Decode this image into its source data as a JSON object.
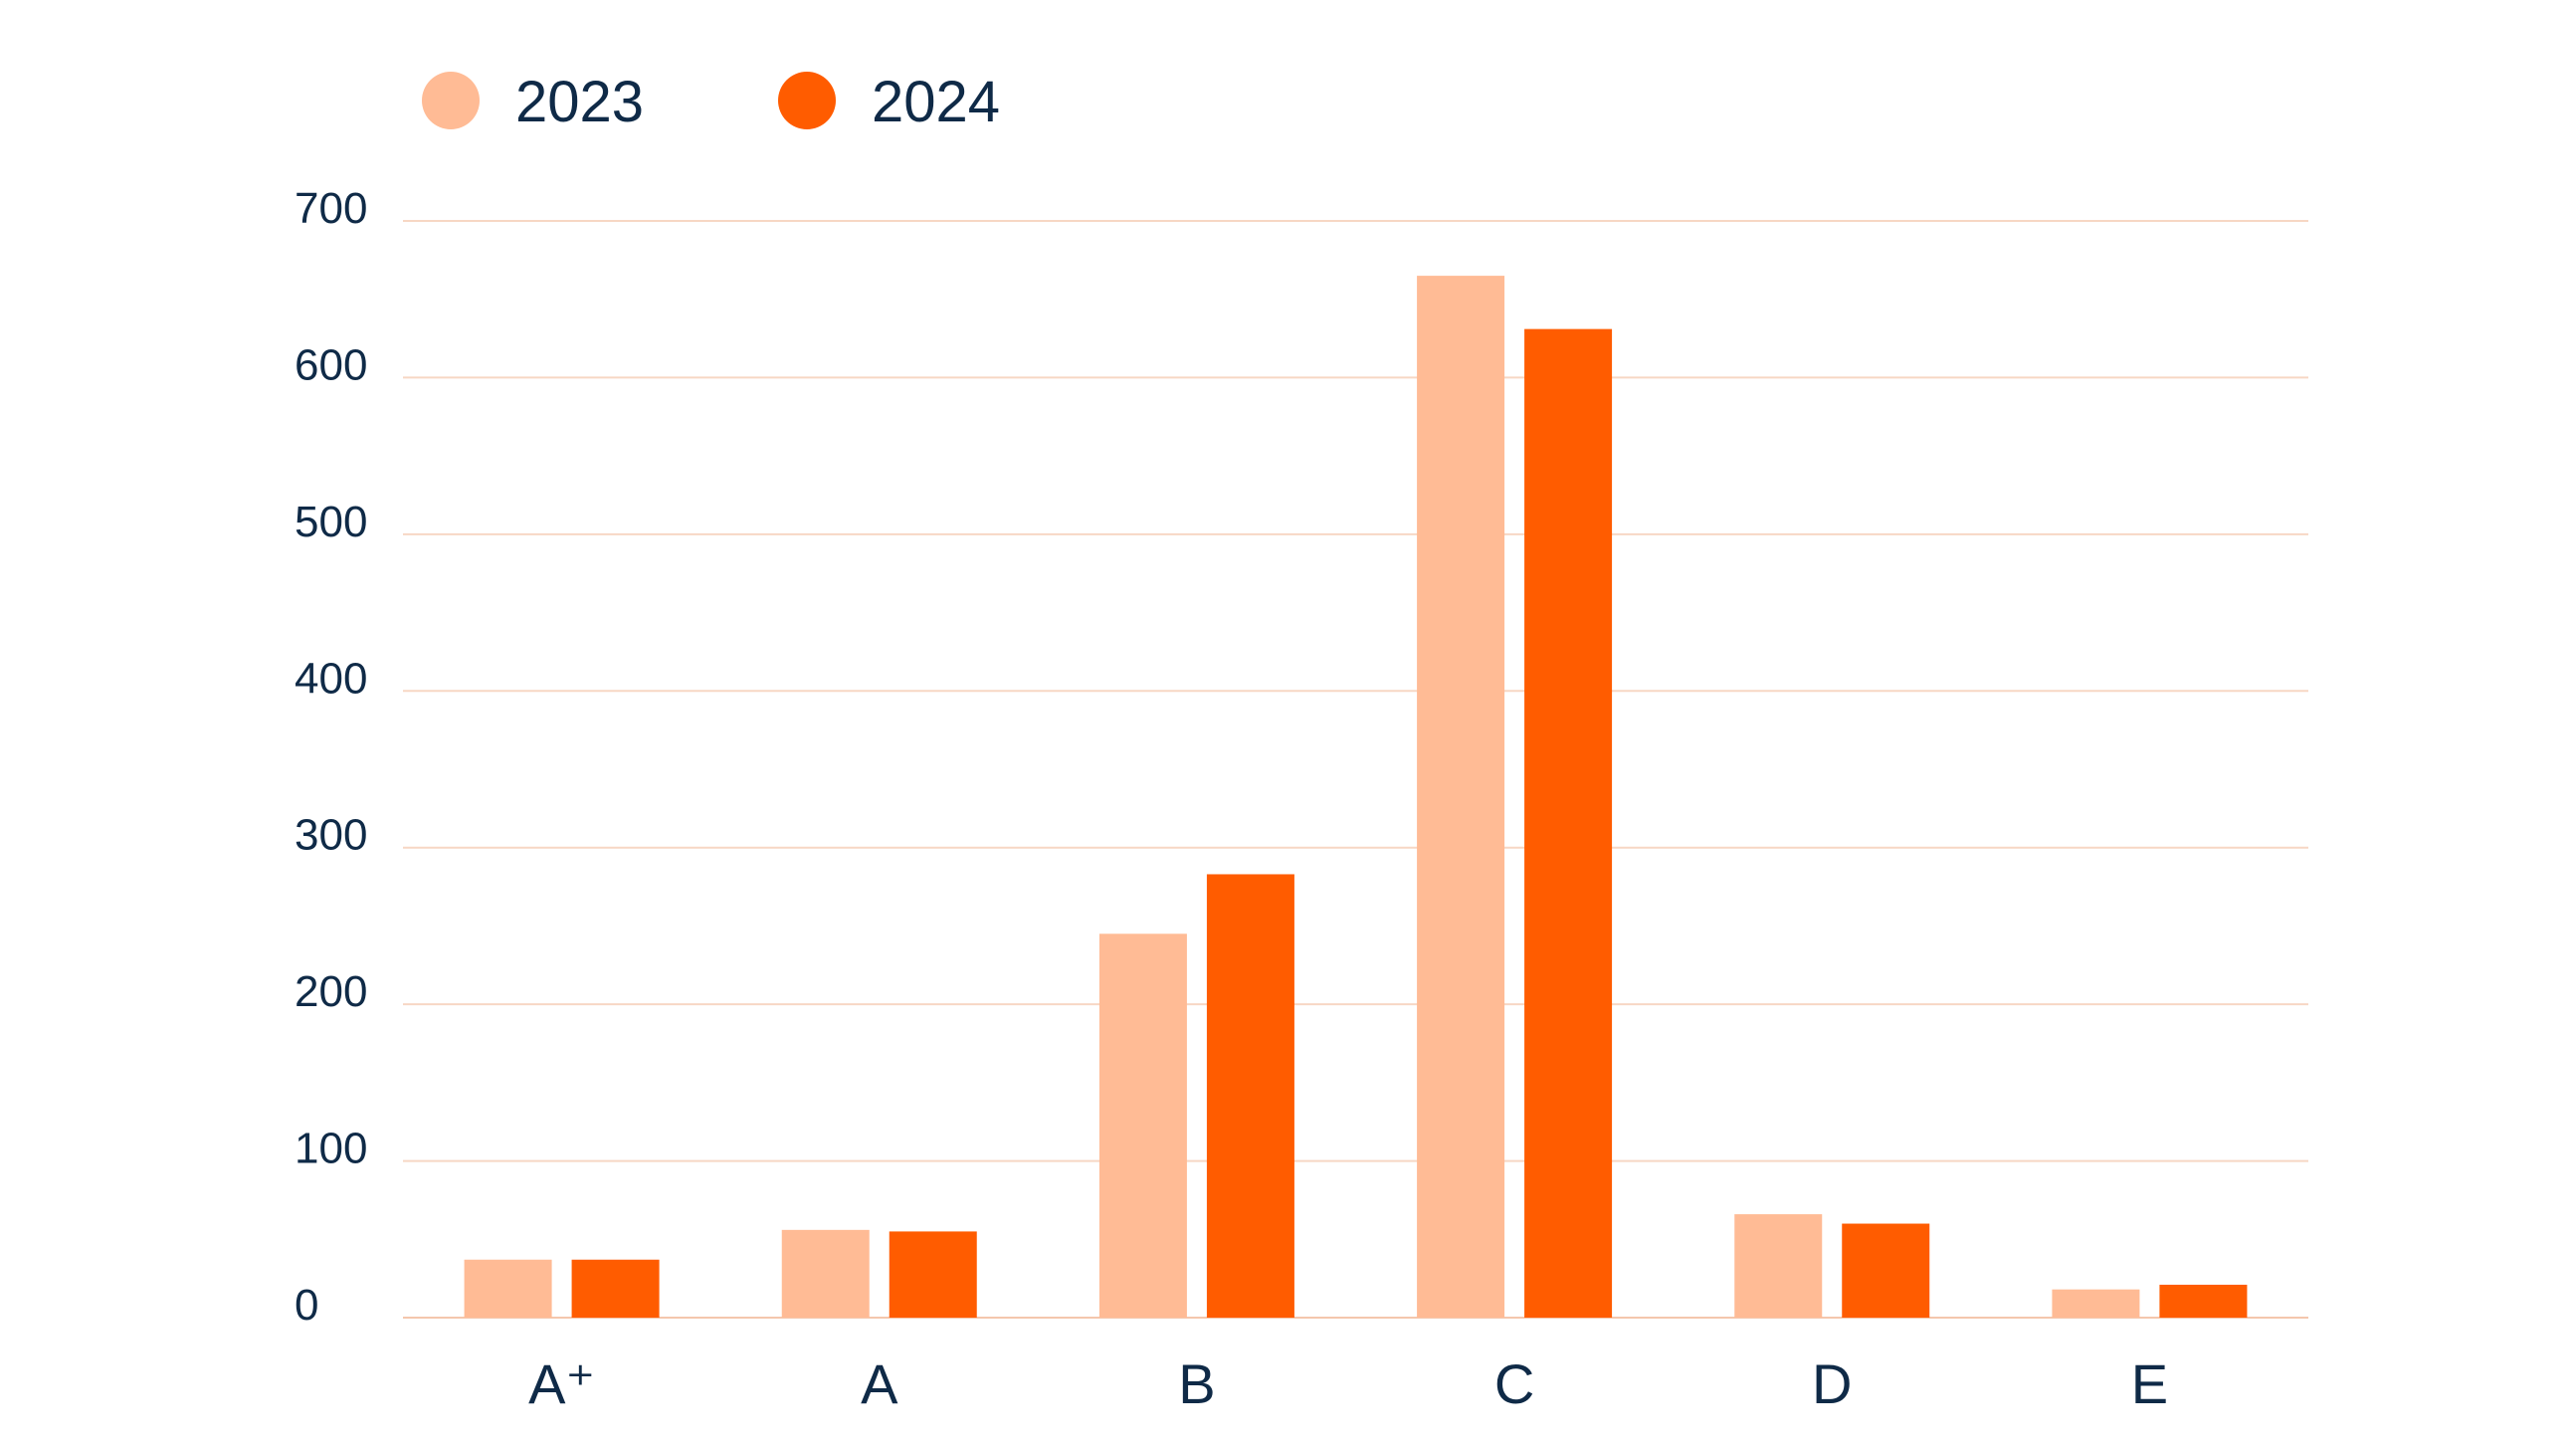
{
  "chart_data": {
    "type": "bar",
    "categories": [
      "A⁺",
      "A",
      "B",
      "C",
      "D",
      "E"
    ],
    "series": [
      {
        "name": "2023",
        "values": [
          37,
          56,
          245,
          665,
          66,
          18
        ],
        "color": "#ffbb95"
      },
      {
        "name": "2024",
        "values": [
          37,
          55,
          283,
          631,
          60,
          21
        ],
        "color": "#ff5c00"
      }
    ],
    "yticks": [
      "0",
      "100",
      "200",
      "300",
      "400",
      "500",
      "600",
      "700"
    ],
    "ylim": [
      0,
      700
    ],
    "grid": true,
    "legend_position": "top-left",
    "title": "",
    "xlabel": "",
    "ylabel": ""
  }
}
